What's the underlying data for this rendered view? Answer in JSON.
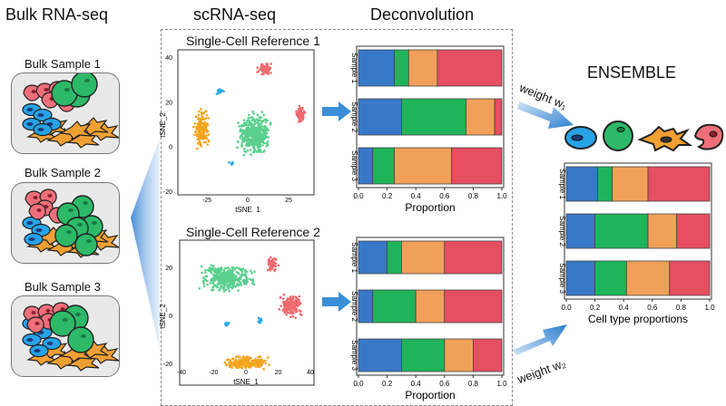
{
  "headers": {
    "bulk": "Bulk RNA-seq",
    "sc": "scRNA-seq",
    "deconv": "Deconvolution",
    "ensemble": "ENSEMBLE"
  },
  "bulk_samples": [
    "Bulk Sample 1",
    "Bulk Sample 2",
    "Bulk Sample 3"
  ],
  "references": [
    {
      "title": "Single-Cell Reference 1",
      "xlabel": "tSNE_1",
      "ylabel": "tSNE_2",
      "xticks": [
        "-25",
        "0",
        "25"
      ],
      "yticks": [
        "40",
        "20",
        "0",
        "-20"
      ]
    },
    {
      "title": "Single-Cell Reference 2",
      "xlabel": "tSNE_1",
      "ylabel": "tSNE_2",
      "xticks": [
        "-40",
        "-20",
        "0",
        "20",
        "40"
      ],
      "yticks": [
        "20",
        "0",
        "-20"
      ]
    }
  ],
  "weights": {
    "w1": "weight w₁",
    "w2": "weight w₂"
  },
  "colors": {
    "blue": "#3878c8",
    "green": "#20b45a",
    "orange": "#f0a058",
    "red": "#e64e62",
    "tsne_green": "#5bd08e",
    "tsne_orange": "#f2a51d",
    "tsne_red": "#ef6a6f",
    "tsne_blue": "#27a9e1"
  },
  "chart_data": [
    {
      "type": "bar",
      "orientation": "horizontal",
      "stacked": true,
      "categories": [
        "Sample 1",
        "Sample 2",
        "Sample 3"
      ],
      "series": [
        {
          "values": [
            0.25,
            0.3,
            0.1
          ]
        },
        {
          "values": [
            0.1,
            0.45,
            0.15
          ]
        },
        {
          "values": [
            0.2,
            0.2,
            0.4
          ]
        },
        {
          "values": [
            0.45,
            0.05,
            0.35
          ]
        }
      ],
      "xlabel": "Proportion",
      "xlim": [
        0,
        1
      ],
      "xticks": [
        "0.0",
        "0.2",
        "0.4",
        "0.6",
        "0.8",
        "1.0"
      ]
    },
    {
      "type": "bar",
      "orientation": "horizontal",
      "stacked": true,
      "categories": [
        "Sample 1",
        "Sample 2",
        "Sample 3"
      ],
      "series": [
        {
          "values": [
            0.2,
            0.1,
            0.3
          ]
        },
        {
          "values": [
            0.1,
            0.3,
            0.3
          ]
        },
        {
          "values": [
            0.3,
            0.2,
            0.2
          ]
        },
        {
          "values": [
            0.4,
            0.4,
            0.2
          ]
        }
      ],
      "xlabel": "Proportion",
      "xlim": [
        0,
        1
      ],
      "xticks": [
        "0.0",
        "0.2",
        "0.4",
        "0.6",
        "0.8",
        "1.0"
      ]
    },
    {
      "type": "bar",
      "orientation": "horizontal",
      "stacked": true,
      "categories": [
        "Sample 1",
        "Sample 2",
        "Sample 3"
      ],
      "series": [
        {
          "values": [
            0.22,
            0.2,
            0.2
          ]
        },
        {
          "values": [
            0.1,
            0.37,
            0.22
          ]
        },
        {
          "values": [
            0.25,
            0.2,
            0.3
          ]
        },
        {
          "values": [
            0.43,
            0.23,
            0.28
          ]
        }
      ],
      "xlabel": "Cell type proportions",
      "xlim": [
        0,
        1
      ],
      "xticks": [
        "0.0",
        "0.2",
        "0.4",
        "0.6",
        "0.8",
        "1.0"
      ]
    }
  ]
}
